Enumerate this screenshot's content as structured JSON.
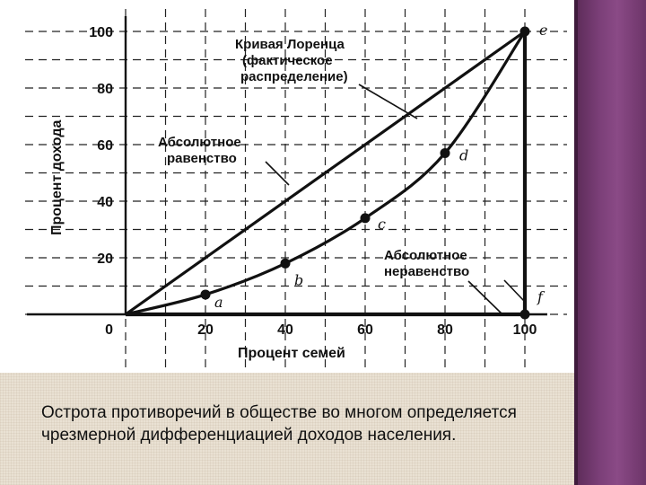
{
  "chart_data": {
    "type": "line",
    "ylabel": "Процент дохода",
    "xlabel": "Процент семей",
    "xlim": [
      0,
      100
    ],
    "ylim": [
      0,
      100
    ],
    "x_ticks": [
      "20",
      "40",
      "60",
      "80",
      "100"
    ],
    "y_ticks": [
      "20",
      "40",
      "60",
      "80",
      "100"
    ],
    "origin_label": "0",
    "grid": true,
    "series": [
      {
        "name": "Абсолютное равенство",
        "x": [
          0,
          100
        ],
        "y": [
          0,
          100
        ]
      },
      {
        "name": "Кривая Лоренца (фактическое распределение)",
        "x": [
          0,
          20,
          40,
          60,
          80,
          100
        ],
        "y": [
          0,
          7,
          18,
          34,
          57,
          100
        ]
      },
      {
        "name": "Абсолютное неравенство",
        "x": [
          0,
          100,
          100
        ],
        "y": [
          0,
          0,
          100
        ]
      }
    ],
    "points": [
      {
        "label": "a",
        "x": 20,
        "y": 7
      },
      {
        "label": "b",
        "x": 40,
        "y": 18
      },
      {
        "label": "c",
        "x": 60,
        "y": 34
      },
      {
        "label": "d",
        "x": 80,
        "y": 57
      },
      {
        "label": "e",
        "x": 100,
        "y": 100
      },
      {
        "label": "f",
        "x": 100,
        "y": 0
      }
    ],
    "annotations": {
      "lorenz_line1": "Кривая Лоренца",
      "lorenz_line2": "(фактическое",
      "lorenz_line3": "распределение)",
      "equality_line1": "Абсолютное",
      "equality_line2": "равенство",
      "inequality_line1": "Абсолютное",
      "inequality_line2": "неравенство"
    }
  },
  "caption": "Острота противоречий в обществе во многом определяется чрезмерной дифференциацией доходов населения.",
  "colors": {
    "accent_bar": "#7b3f78",
    "caption_bg": "#e9e1d3",
    "ink": "#111111"
  }
}
